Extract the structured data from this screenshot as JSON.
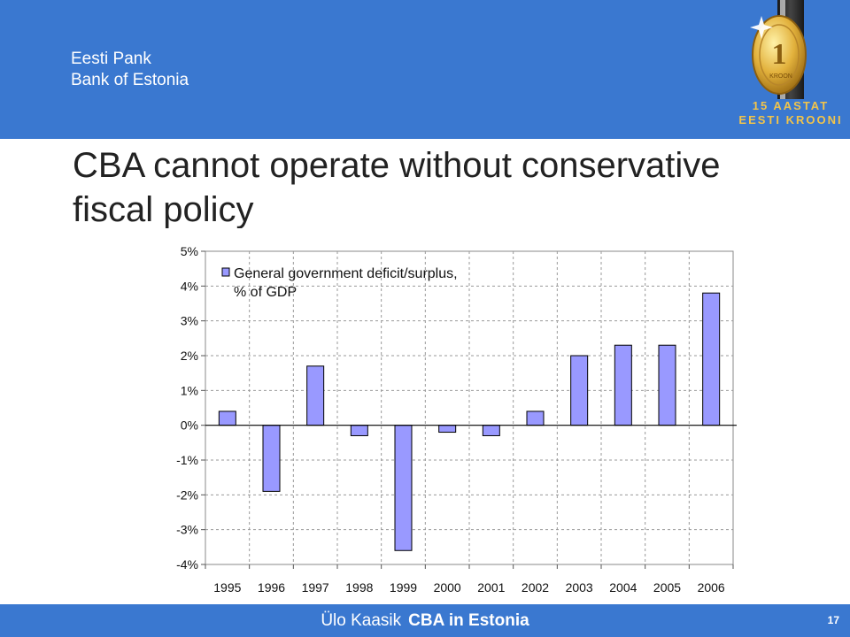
{
  "header": {
    "org_line1": "Eesti Pank",
    "org_line2": "Bank of Estonia",
    "badge_line1": "15 AASTAT",
    "badge_line2": "EESTI KROONI",
    "coin_text": "KROON",
    "bg_color": "#3a78d0"
  },
  "slide": {
    "title": "CBA cannot operate without conservative fiscal policy"
  },
  "chart_data": {
    "type": "bar",
    "categories": [
      "1995",
      "1996",
      "1997",
      "1998",
      "1999",
      "2000",
      "2001",
      "2002",
      "2003",
      "2004",
      "2005",
      "2006"
    ],
    "series": [
      {
        "name": "General government deficit/surplus, % of GDP",
        "values": [
          0.4,
          -1.9,
          1.7,
          -0.3,
          -3.6,
          -0.2,
          -0.3,
          0.4,
          2.0,
          2.3,
          2.3,
          3.8
        ]
      }
    ],
    "legend_lines": [
      "General government deficit/surplus,",
      "% of GDP"
    ],
    "yticks": [
      "5%",
      "4%",
      "3%",
      "2%",
      "1%",
      "0%",
      "-1%",
      "-2%",
      "-3%",
      "-4%"
    ],
    "ylim": [
      -4,
      5
    ],
    "grid": true,
    "legend_position": "top-left",
    "bar_color": "#9999ff"
  },
  "footer": {
    "author": "Ülo Kaasik",
    "topic": "CBA in Estonia",
    "page": "17"
  }
}
